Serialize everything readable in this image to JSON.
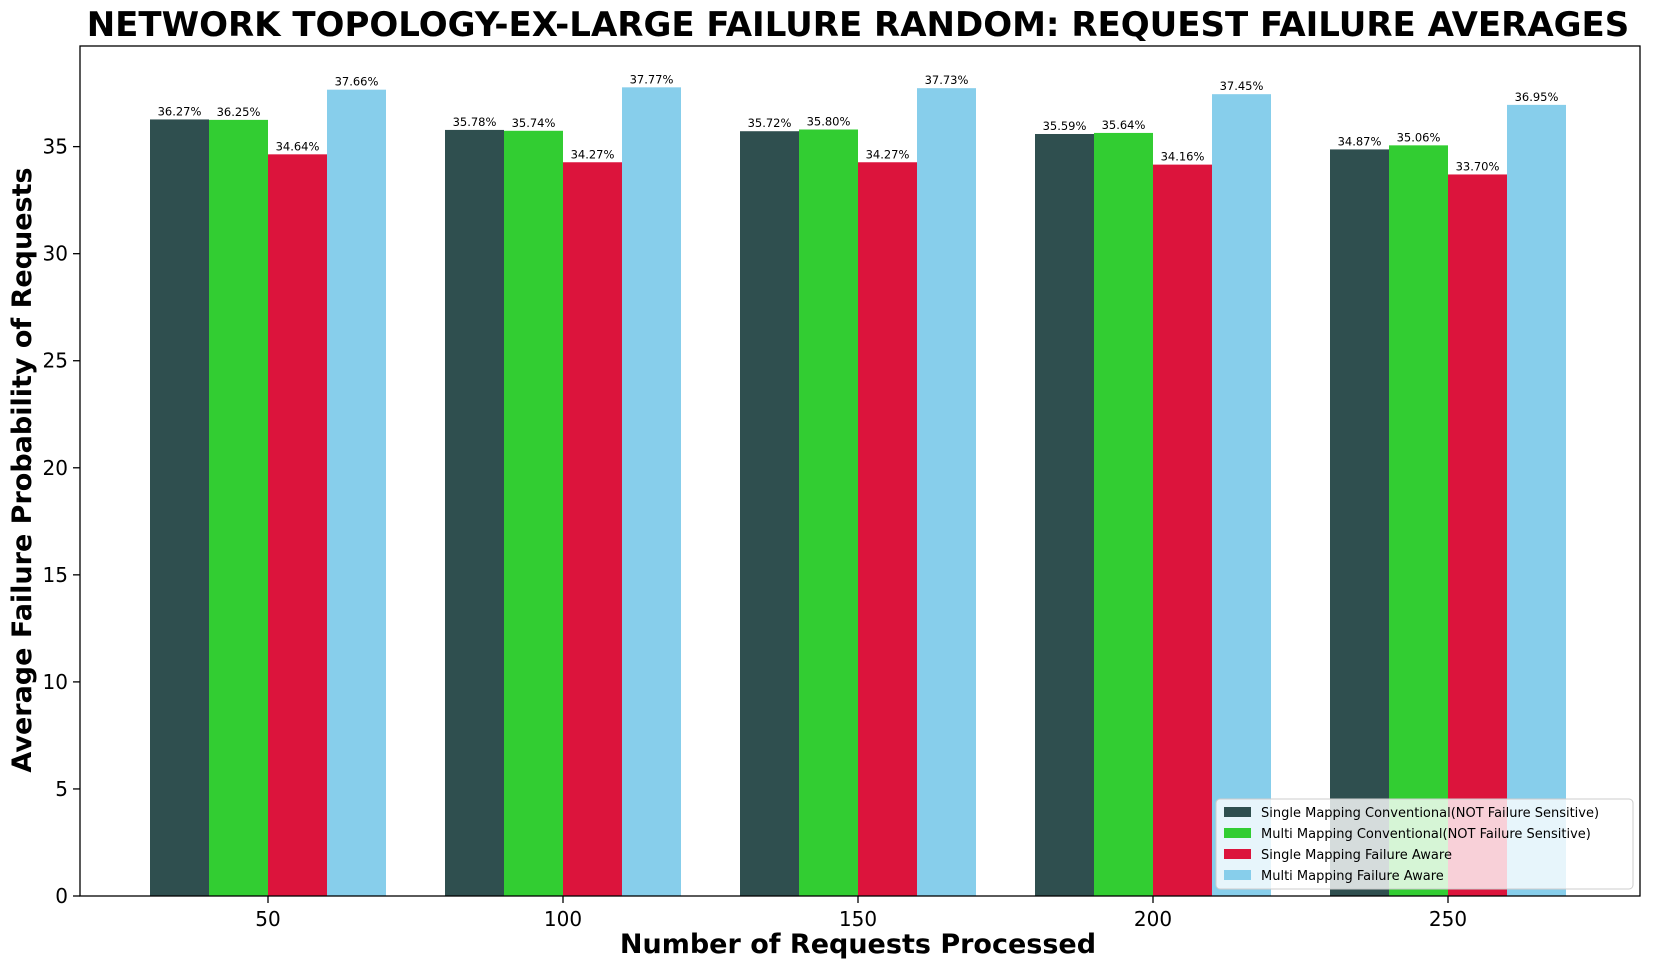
{
  "chart_data": {
    "type": "bar",
    "title": "NETWORK TOPOLOGY-EX-LARGE FAILURE RANDOM: REQUEST FAILURE AVERAGES",
    "xlabel": "Number of Requests Processed",
    "ylabel": "Average Failure Probability of Requests",
    "categories": [
      "50",
      "100",
      "150",
      "200",
      "250"
    ],
    "ylim": [
      0,
      39.7
    ],
    "yticks": [
      0,
      5,
      10,
      15,
      20,
      25,
      30,
      35
    ],
    "grid": false,
    "legend_position": "bottom-right",
    "series": [
      {
        "name": "Single Mapping Conventional(NOT Failure Sensitive)",
        "color": "#2F4F4F",
        "values": [
          36.27,
          35.78,
          35.72,
          35.59,
          34.87
        ],
        "labels": [
          "36.27%",
          "35.78%",
          "35.72%",
          "35.59%",
          "34.87%"
        ]
      },
      {
        "name": "Multi Mapping Conventional(NOT Failure Sensitive)",
        "color": "#32CD32",
        "values": [
          36.25,
          35.74,
          35.8,
          35.64,
          35.06
        ],
        "labels": [
          "36.25%",
          "35.74%",
          "35.80%",
          "35.64%",
          "35.06%"
        ]
      },
      {
        "name": "Single Mapping Failure Aware",
        "color": "#DC143C",
        "values": [
          34.64,
          34.27,
          34.27,
          34.16,
          33.7
        ],
        "labels": [
          "34.64%",
          "34.27%",
          "34.27%",
          "34.16%",
          "33.70%"
        ]
      },
      {
        "name": "Multi Mapping Failure Aware",
        "color": "#87CEEB",
        "values": [
          37.66,
          37.77,
          37.73,
          37.45,
          36.95
        ],
        "labels": [
          "37.66%",
          "37.77%",
          "37.73%",
          "37.45%",
          "36.95%"
        ]
      }
    ]
  }
}
